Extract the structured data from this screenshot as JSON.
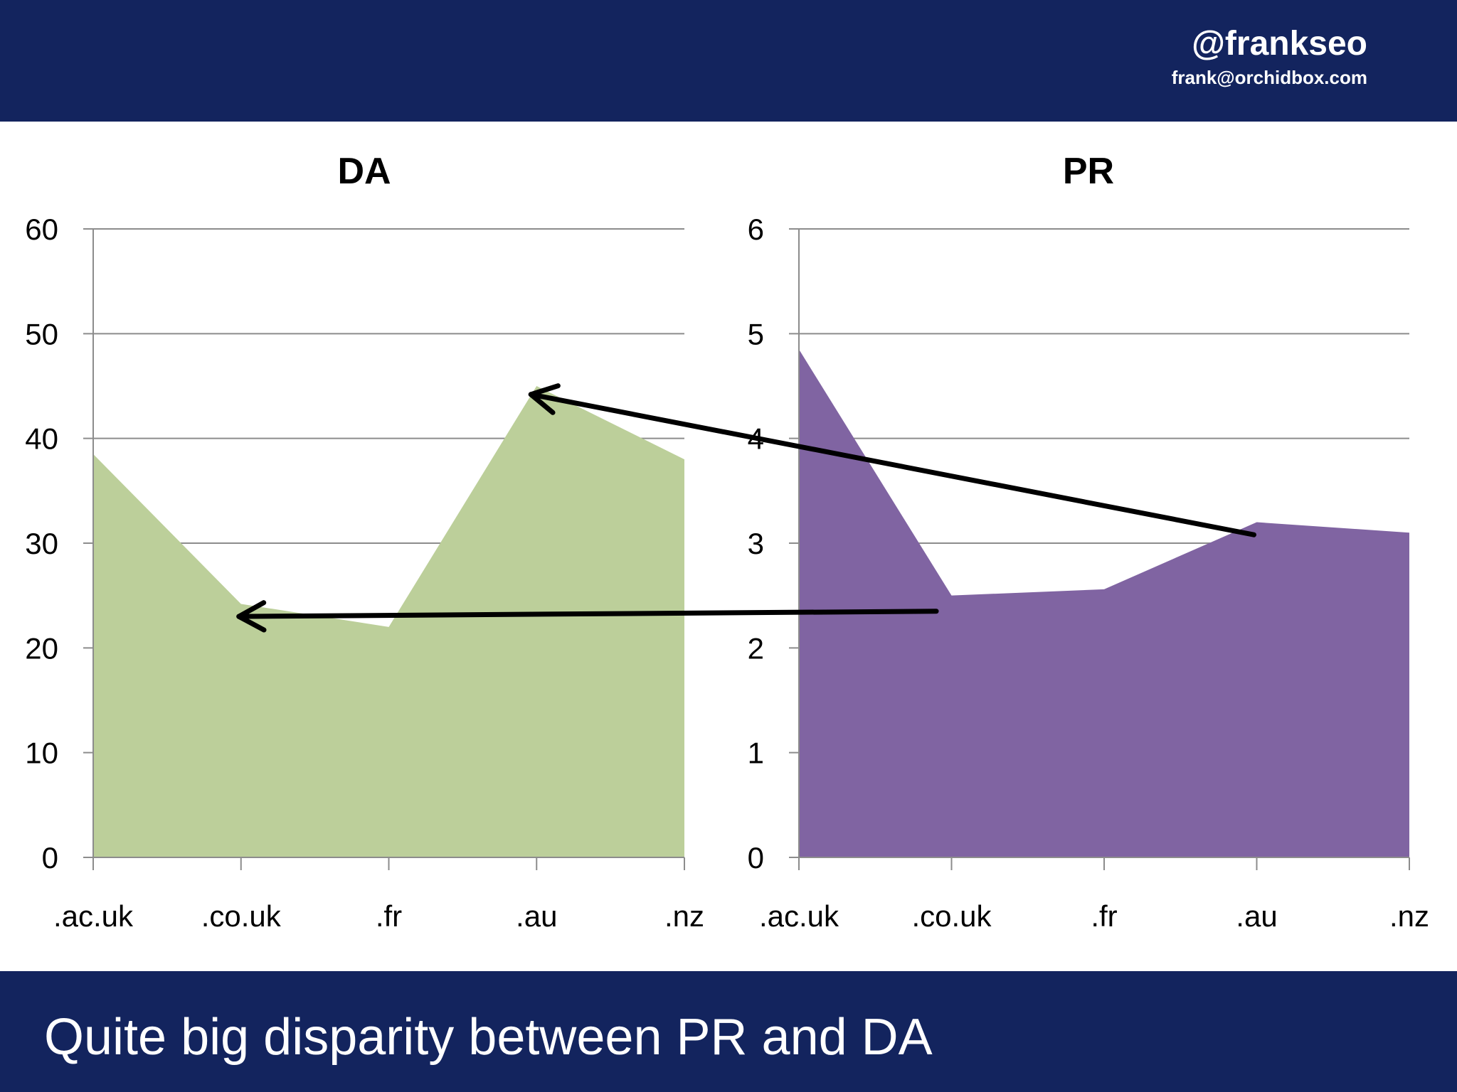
{
  "header": {
    "handle": "@frankseo",
    "email": "frank@orchidbox.com"
  },
  "footer": {
    "caption": "Quite big disparity between PR and DA"
  },
  "colors": {
    "header_bg": "#13245e",
    "da_fill": "#bccf9a",
    "pr_fill": "#8064a2",
    "gridline": "#8c8c8c",
    "arrow": "#000000"
  },
  "chart_data": [
    {
      "type": "area",
      "title": "DA",
      "categories": [
        ".ac.uk",
        ".co.uk",
        ".fr",
        ".au",
        ".nz"
      ],
      "series": [
        {
          "values": [
            38.5,
            24.2,
            22,
            45,
            38
          ]
        }
      ],
      "yticks": [
        "0",
        "10",
        "20",
        "30",
        "40",
        "50",
        "60"
      ],
      "ylim": [
        0,
        60
      ],
      "grid": true,
      "legend": "none"
    },
    {
      "type": "area",
      "title": "PR",
      "categories": [
        ".ac.uk",
        ".co.uk",
        ".fr",
        ".au",
        ".nz"
      ],
      "series": [
        {
          "values": [
            4.85,
            2.5,
            2.56,
            3.2,
            3.1
          ]
        }
      ],
      "yticks": [
        "0",
        "1",
        "2",
        "3",
        "4",
        "5",
        "6"
      ],
      "ylim": [
        0,
        6
      ],
      "grid": true,
      "legend": "none"
    }
  ]
}
